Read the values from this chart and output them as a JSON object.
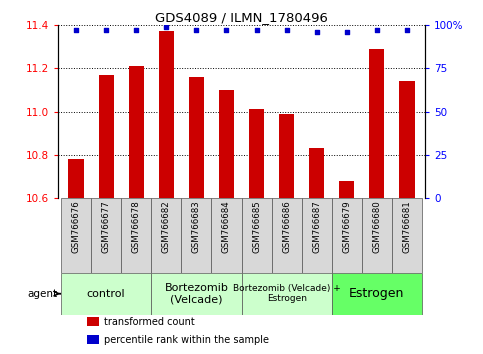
{
  "title": "GDS4089 / ILMN_1780496",
  "samples": [
    "GSM766676",
    "GSM766677",
    "GSM766678",
    "GSM766682",
    "GSM766683",
    "GSM766684",
    "GSM766685",
    "GSM766686",
    "GSM766687",
    "GSM766679",
    "GSM766680",
    "GSM766681"
  ],
  "bar_values": [
    10.78,
    11.17,
    11.21,
    11.37,
    11.16,
    11.1,
    11.01,
    10.99,
    10.83,
    10.68,
    11.29,
    11.14
  ],
  "percentile_values": [
    97,
    97,
    97,
    99,
    97,
    97,
    97,
    97,
    96,
    96,
    97,
    97
  ],
  "bar_color": "#cc0000",
  "dot_color": "#0000cc",
  "ylim_left": [
    10.6,
    11.4
  ],
  "ylim_right": [
    0,
    100
  ],
  "yticks_left": [
    10.6,
    10.8,
    11.0,
    11.2,
    11.4
  ],
  "yticks_right": [
    0,
    25,
    50,
    75,
    100
  ],
  "yticklabels_right": [
    "0",
    "25",
    "50",
    "75",
    "100%"
  ],
  "groups": [
    {
      "label": "control",
      "start": 0,
      "end": 3,
      "color": "#ccffcc",
      "fontsize": 8
    },
    {
      "label": "Bortezomib\n(Velcade)",
      "start": 3,
      "end": 6,
      "color": "#ccffcc",
      "fontsize": 8
    },
    {
      "label": "Bortezomib (Velcade) +\nEstrogen",
      "start": 6,
      "end": 9,
      "color": "#ccffcc",
      "fontsize": 6.5
    },
    {
      "label": "Estrogen",
      "start": 9,
      "end": 12,
      "color": "#66ff66",
      "fontsize": 9
    }
  ],
  "group_row_label": "agent",
  "legend_items": [
    {
      "color": "#cc0000",
      "label": "transformed count"
    },
    {
      "color": "#0000cc",
      "label": "percentile rank within the sample"
    }
  ],
  "bar_width": 0.5,
  "sample_box_color": "#d8d8d8",
  "border_color": "#555555"
}
